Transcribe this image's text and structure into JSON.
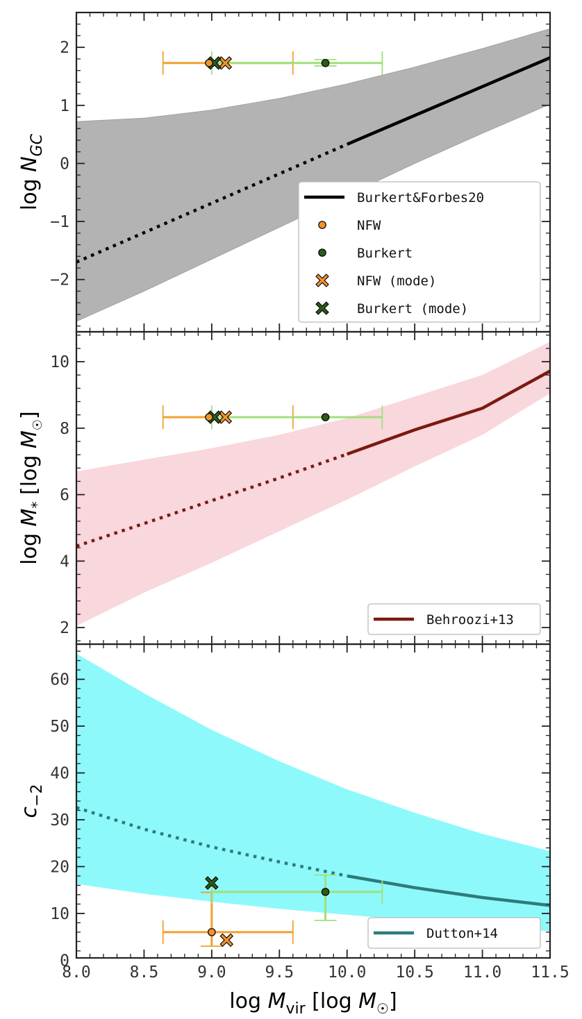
{
  "figure": {
    "xlabel": "log M_vir [log M_⊙]",
    "x_ticks": [
      8.0,
      8.5,
      9.0,
      9.5,
      10.0,
      10.5,
      11.0,
      11.5
    ],
    "x_tick_labels": [
      "8.0",
      "8.5",
      "9.0",
      "9.5",
      "10.0",
      "10.5",
      "11.0",
      "11.5"
    ]
  },
  "colors": {
    "nfw": "#f0922e",
    "nfw_err": "#f0a030",
    "burkert": "#2d5a1b",
    "burkert_err": "#a0e07a",
    "gc_line": "#000000",
    "gc_band": "#b3b3b3",
    "ms_line": "#7b1a10",
    "ms_band": "#f8d7dd",
    "c_line": "#2e7b7b",
    "c_band": "#8ef9fb"
  },
  "chart_data": [
    {
      "id": "ngc",
      "type": "line",
      "ylabel": "log N_GC",
      "xlim": [
        8.0,
        11.5
      ],
      "ylim": [
        -2.9,
        2.6
      ],
      "y_ticks": [
        -2,
        -1,
        0,
        1,
        2
      ],
      "y_tick_labels": [
        "−2",
        "−1",
        "0",
        "1",
        "2"
      ],
      "model": {
        "name": "Burkert&Forbes20",
        "x": [
          8.0,
          10.0,
          11.5
        ],
        "y": [
          -1.7,
          0.33,
          1.82
        ],
        "solid_from": 10.0,
        "band_x": [
          8.0,
          8.5,
          9.0,
          9.5,
          10.0,
          10.5,
          11.0,
          11.5
        ],
        "band_upper": [
          0.72,
          0.78,
          0.92,
          1.12,
          1.37,
          1.66,
          1.98,
          2.32
        ],
        "band_lower": [
          -2.72,
          -2.2,
          -1.65,
          -1.1,
          -0.55,
          0.0,
          0.52,
          1.02
        ]
      },
      "points": [
        {
          "name": "NFW",
          "x": 8.98,
          "y": 1.73,
          "xerr": [
            8.64,
            9.6
          ],
          "yerr": null,
          "marker": "circle",
          "series": "nfw"
        },
        {
          "name": "Burkert",
          "x": 9.84,
          "y": 1.73,
          "xerr": [
            9.0,
            10.26
          ],
          "yerr": [
            1.68,
            1.79
          ],
          "marker": "circle",
          "series": "burkert"
        },
        {
          "name": "NFW (mode)",
          "x": 9.1,
          "y": 1.73,
          "marker": "cross",
          "series": "nfw"
        },
        {
          "name": "Burkert (mode)",
          "x": 9.02,
          "y": 1.73,
          "marker": "cross",
          "series": "burkert"
        }
      ],
      "legend": {
        "position": "lower-right",
        "entries": [
          "Burkert&Forbes20",
          "NFW",
          "Burkert",
          "NFW (mode)",
          "Burkert (mode)"
        ]
      }
    },
    {
      "id": "mstar",
      "type": "line",
      "ylabel": "log M_* [log M_⊙]",
      "xlim": [
        8.0,
        11.5
      ],
      "ylim": [
        1.5,
        10.9
      ],
      "y_ticks": [
        2,
        4,
        6,
        8,
        10
      ],
      "y_tick_labels": [
        "2",
        "4",
        "6",
        "8",
        "10"
      ],
      "model": {
        "name": "Behroozi+13",
        "x": [
          8.0,
          8.5,
          9.0,
          9.5,
          10.0,
          10.5,
          11.0,
          11.5
        ],
        "y": [
          4.45,
          5.13,
          5.82,
          6.5,
          7.22,
          7.95,
          8.6,
          9.72
        ],
        "solid_from": 10.0,
        "band_x": [
          8.0,
          8.5,
          9.0,
          9.5,
          10.0,
          10.5,
          11.0,
          11.5
        ],
        "band_upper": [
          6.7,
          7.05,
          7.4,
          7.8,
          8.3,
          8.95,
          9.6,
          10.6
        ],
        "band_lower": [
          2.05,
          3.05,
          3.95,
          4.9,
          5.85,
          6.85,
          7.8,
          9.05
        ]
      },
      "points": [
        {
          "name": "NFW",
          "x": 8.98,
          "y": 8.33,
          "xerr": [
            8.64,
            9.6
          ],
          "yerr": null,
          "marker": "circle",
          "series": "nfw"
        },
        {
          "name": "Burkert",
          "x": 9.84,
          "y": 8.33,
          "xerr": [
            9.0,
            10.26
          ],
          "yerr": null,
          "marker": "circle",
          "series": "burkert"
        },
        {
          "name": "NFW (mode)",
          "x": 9.1,
          "y": 8.33,
          "marker": "cross",
          "series": "nfw"
        },
        {
          "name": "Burkert (mode)",
          "x": 9.02,
          "y": 8.33,
          "marker": "cross",
          "series": "burkert"
        }
      ],
      "legend": {
        "position": "lower-right",
        "entries": [
          "Behroozi+13"
        ]
      }
    },
    {
      "id": "conc",
      "type": "line",
      "ylabel": "c_−2",
      "xlim": [
        8.0,
        11.5
      ],
      "ylim": [
        0.5,
        67.5
      ],
      "y_ticks": [
        0,
        10,
        20,
        30,
        40,
        50,
        60
      ],
      "y_tick_labels": [
        "0",
        "10",
        "20",
        "30",
        "40",
        "50",
        "60"
      ],
      "model": {
        "name": "Dutton+14",
        "x": [
          8.0,
          8.5,
          9.0,
          9.5,
          10.0,
          10.5,
          11.0,
          11.5
        ],
        "y": [
          32.6,
          28.0,
          24.2,
          21.0,
          18.0,
          15.5,
          13.4,
          11.7
        ],
        "solid_from": 10.0,
        "band_x": [
          8.0,
          8.5,
          9.0,
          9.5,
          10.0,
          10.5,
          11.0,
          11.5
        ],
        "band_upper": [
          65.5,
          57.0,
          49.2,
          42.5,
          36.5,
          31.5,
          27.0,
          23.3
        ],
        "band_lower": [
          16.3,
          14.2,
          12.5,
          11.0,
          9.7,
          8.5,
          7.3,
          6.2
        ]
      },
      "points": [
        {
          "name": "NFW",
          "x": 9.0,
          "y": 6.0,
          "xerr": [
            8.64,
            9.6
          ],
          "yerr": [
            3.0,
            14.5
          ],
          "marker": "circle",
          "series": "nfw"
        },
        {
          "name": "Burkert",
          "x": 9.84,
          "y": 14.6,
          "xerr": [
            9.0,
            10.26
          ],
          "yerr": [
            8.5,
            18.2
          ],
          "marker": "circle",
          "series": "burkert"
        },
        {
          "name": "NFW (mode)",
          "x": 9.11,
          "y": 4.3,
          "marker": "cross",
          "series": "nfw"
        },
        {
          "name": "Burkert (mode)",
          "x": 9.0,
          "y": 16.5,
          "marker": "cross",
          "series": "burkert"
        }
      ],
      "legend": {
        "position": "lower-right",
        "entries": [
          "Dutton+14"
        ]
      }
    }
  ]
}
